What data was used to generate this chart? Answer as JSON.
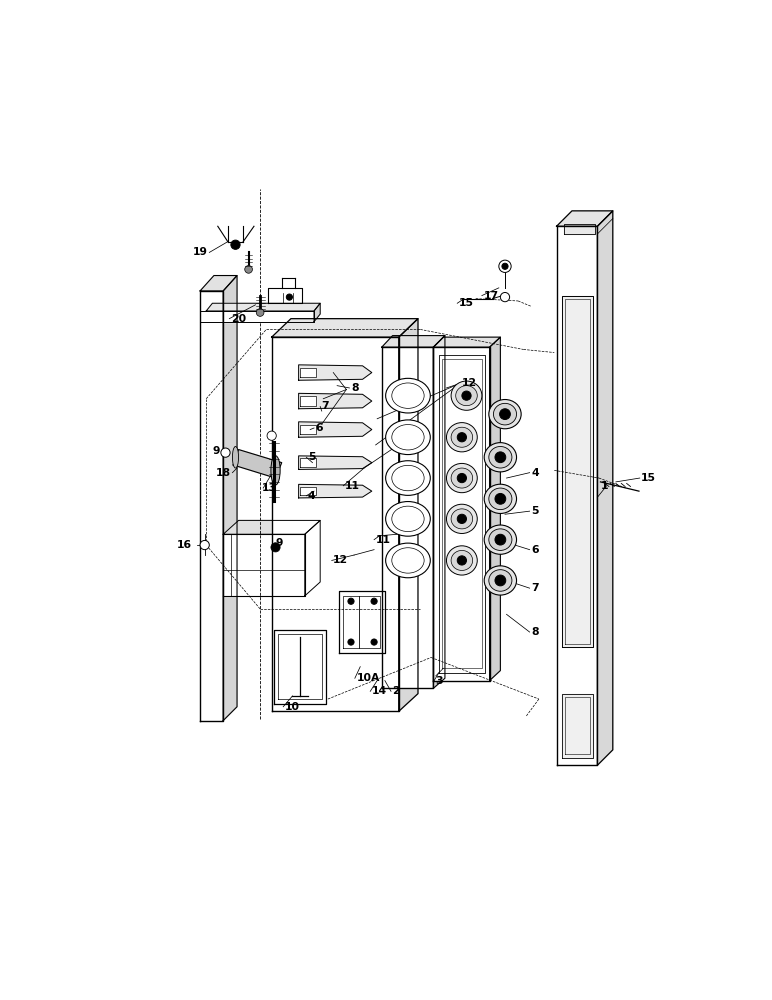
{
  "bg_color": "#ffffff",
  "lc": "#000000",
  "fig_width": 7.72,
  "fig_height": 10.0,
  "dpi": 100,
  "labels": [
    [
      "1",
      6.62,
      5.25,
      "right"
    ],
    [
      "2",
      3.82,
      2.58,
      "left"
    ],
    [
      "3",
      4.38,
      2.72,
      "left"
    ],
    [
      "4",
      5.62,
      5.42,
      "left"
    ],
    [
      "5",
      5.62,
      4.92,
      "left"
    ],
    [
      "6",
      5.62,
      4.42,
      "left"
    ],
    [
      "7",
      5.62,
      3.92,
      "left"
    ],
    [
      "8",
      5.62,
      3.35,
      "left"
    ],
    [
      "9",
      1.58,
      5.7,
      "right"
    ],
    [
      "9",
      2.3,
      4.5,
      "left"
    ],
    [
      "10",
      2.42,
      2.38,
      "left"
    ],
    [
      "10A",
      3.35,
      2.75,
      "left"
    ],
    [
      "11",
      3.2,
      5.25,
      "left"
    ],
    [
      "11",
      3.6,
      4.55,
      "left"
    ],
    [
      "12",
      4.72,
      6.58,
      "left"
    ],
    [
      "12",
      3.05,
      4.28,
      "left"
    ],
    [
      "13",
      2.12,
      5.22,
      "left"
    ],
    [
      "14",
      3.55,
      2.58,
      "left"
    ],
    [
      "15",
      7.05,
      5.35,
      "left"
    ],
    [
      "15",
      4.68,
      7.62,
      "left"
    ],
    [
      "16",
      1.22,
      4.48,
      "right"
    ],
    [
      "17",
      5.0,
      7.72,
      "left"
    ],
    [
      "18",
      1.72,
      5.42,
      "right"
    ],
    [
      "19",
      1.42,
      8.28,
      "right"
    ],
    [
      "20",
      1.72,
      7.42,
      "left"
    ],
    [
      "4",
      2.72,
      5.12,
      "left"
    ],
    [
      "5",
      2.72,
      5.62,
      "left"
    ],
    [
      "6",
      2.82,
      6.0,
      "left"
    ],
    [
      "7",
      2.9,
      6.28,
      "left"
    ],
    [
      "8",
      3.28,
      6.52,
      "left"
    ]
  ]
}
